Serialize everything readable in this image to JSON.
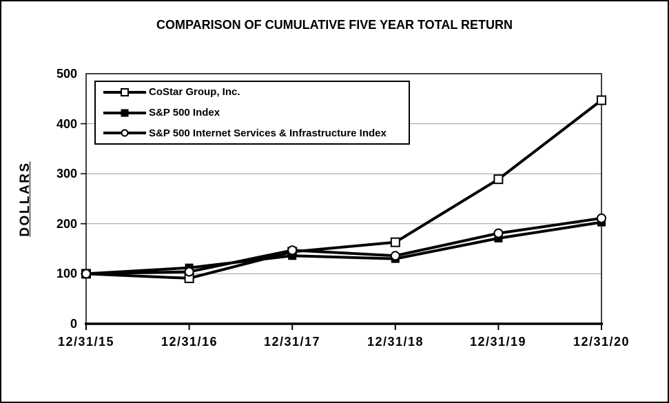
{
  "chart_data": {
    "type": "line",
    "title": "COMPARISON OF CUMULATIVE FIVE YEAR TOTAL RETURN",
    "xlabel": "",
    "ylabel": "DOLLARS",
    "categories": [
      "12/31/15",
      "12/31/16",
      "12/31/17",
      "12/31/18",
      "12/31/19",
      "12/31/20"
    ],
    "yticks": [
      "0",
      "100",
      "200",
      "300",
      "400",
      "500"
    ],
    "ylim": [
      0,
      500
    ],
    "grid": "horizontal",
    "legend_position": "top-left-inside",
    "series": [
      {
        "name": "CoStar Group, Inc.",
        "marker": "open-square",
        "color": "#000000",
        "values": [
          100,
          91,
          144,
          163,
          289,
          447
        ]
      },
      {
        "name": "S&P 500 Index",
        "marker": "filled-square",
        "color": "#000000",
        "values": [
          100,
          112,
          136,
          130,
          171,
          203
        ]
      },
      {
        "name": "S&P 500 Internet Services & Infrastructure Index",
        "marker": "open-circle",
        "color": "#000000",
        "values": [
          100,
          104,
          147,
          136,
          181,
          211
        ]
      }
    ],
    "colors": {
      "line": "#000000",
      "grid": "#999999",
      "axis": "#000000",
      "background": "#ffffff"
    }
  }
}
